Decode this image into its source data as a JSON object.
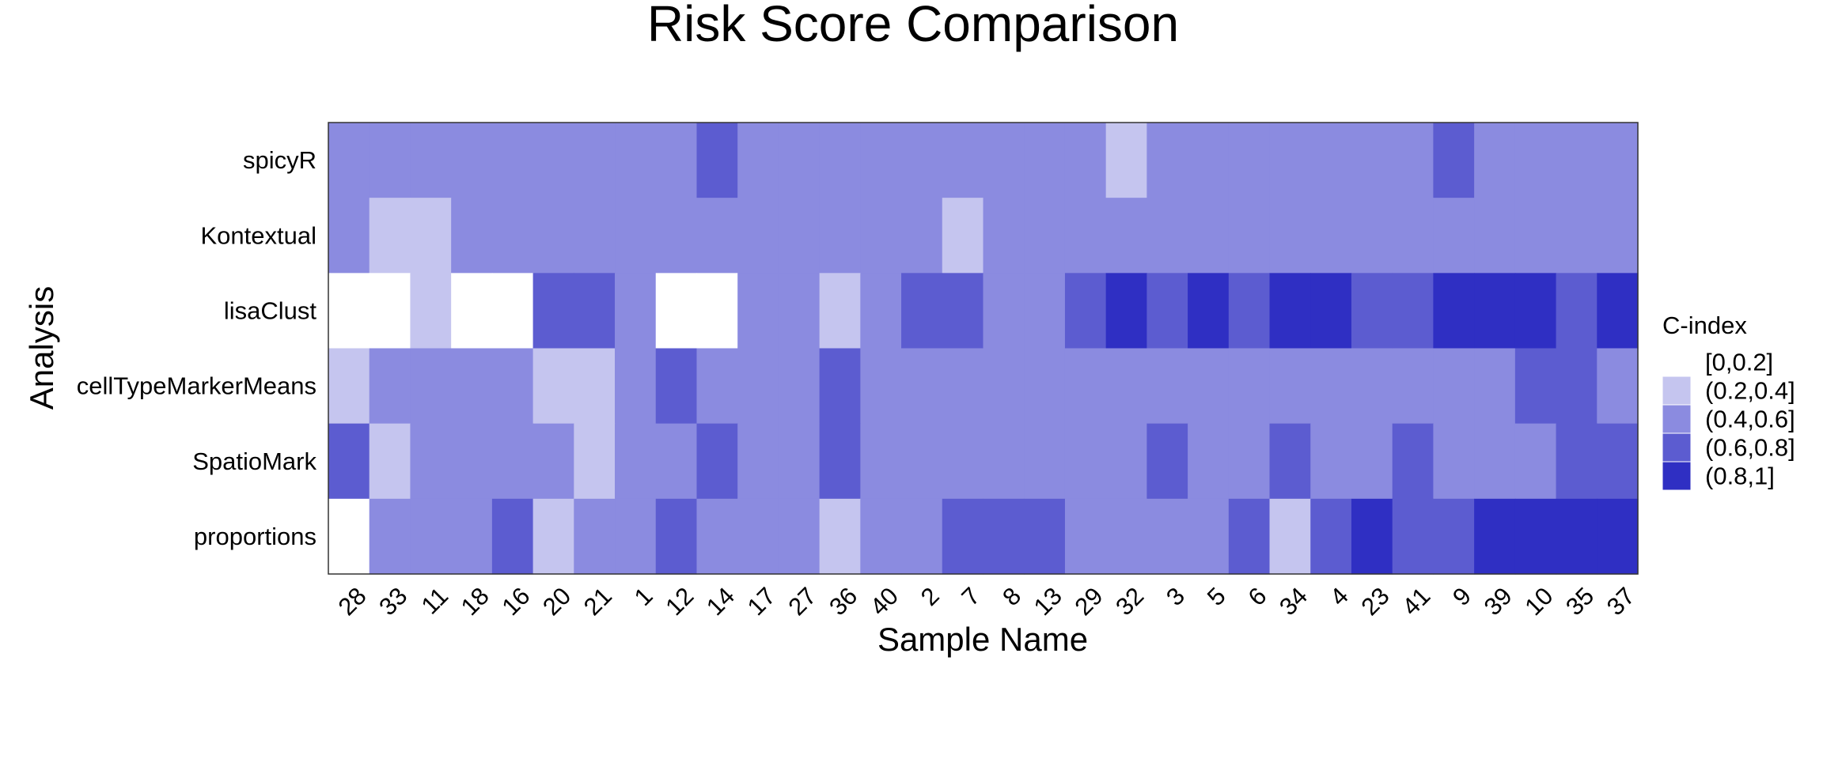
{
  "chart_data": {
    "type": "heatmap",
    "title": "Risk Score Comparison",
    "xlabel": "Sample Name",
    "ylabel": "Analysis",
    "x_categories": [
      "28",
      "33",
      "11",
      "18",
      "16",
      "20",
      "21",
      "1",
      "12",
      "14",
      "17",
      "27",
      "36",
      "40",
      "2",
      "7",
      "8",
      "13",
      "29",
      "32",
      "3",
      "5",
      "6",
      "34",
      "4",
      "23",
      "41",
      "9",
      "39",
      "10",
      "35",
      "37"
    ],
    "y_categories": [
      "spicyR",
      "Kontextual",
      "lisaClust",
      "cellTypeMarkerMeans",
      "SpatioMark",
      "proportions"
    ],
    "legend": {
      "title": "C-index",
      "placement": "right",
      "bins": [
        {
          "label": "[0,0.2]",
          "color": "#ffffff"
        },
        {
          "label": "(0.2,0.4]",
          "color": "#c5c5ef"
        },
        {
          "label": "(0.4,0.6]",
          "color": "#8b8be0"
        },
        {
          "label": "(0.6,0.8]",
          "color": "#5c5cd0"
        },
        {
          "label": "(0.8,1]",
          "color": "#2f2fc3"
        }
      ]
    },
    "grid": false,
    "bin_values": [
      [
        2,
        2,
        2,
        2,
        2,
        2,
        2,
        2,
        2,
        3,
        2,
        2,
        2,
        2,
        2,
        2,
        2,
        2,
        2,
        1,
        2,
        2,
        2,
        2,
        2,
        2,
        2,
        3,
        2,
        2,
        2,
        2
      ],
      [
        2,
        1,
        1,
        2,
        2,
        2,
        2,
        2,
        2,
        2,
        2,
        2,
        2,
        2,
        2,
        1,
        2,
        2,
        2,
        2,
        2,
        2,
        2,
        2,
        2,
        2,
        2,
        2,
        2,
        2,
        2,
        2
      ],
      [
        0,
        0,
        1,
        0,
        0,
        3,
        3,
        2,
        0,
        0,
        2,
        2,
        1,
        2,
        3,
        3,
        2,
        2,
        3,
        4,
        3,
        4,
        3,
        4,
        4,
        3,
        3,
        4,
        4,
        4,
        3,
        4
      ],
      [
        1,
        2,
        2,
        2,
        2,
        1,
        1,
        2,
        3,
        2,
        2,
        2,
        3,
        2,
        2,
        2,
        2,
        2,
        2,
        2,
        2,
        2,
        2,
        2,
        2,
        2,
        2,
        2,
        2,
        3,
        3,
        2
      ],
      [
        3,
        1,
        2,
        2,
        2,
        2,
        1,
        2,
        2,
        3,
        2,
        2,
        3,
        2,
        2,
        2,
        2,
        2,
        2,
        2,
        3,
        2,
        2,
        3,
        2,
        2,
        3,
        2,
        2,
        2,
        3,
        3
      ],
      [
        0,
        2,
        2,
        2,
        3,
        1,
        2,
        2,
        3,
        2,
        2,
        2,
        1,
        2,
        2,
        3,
        3,
        3,
        2,
        2,
        2,
        2,
        3,
        1,
        3,
        4,
        3,
        3,
        4,
        4,
        4,
        4
      ]
    ]
  }
}
